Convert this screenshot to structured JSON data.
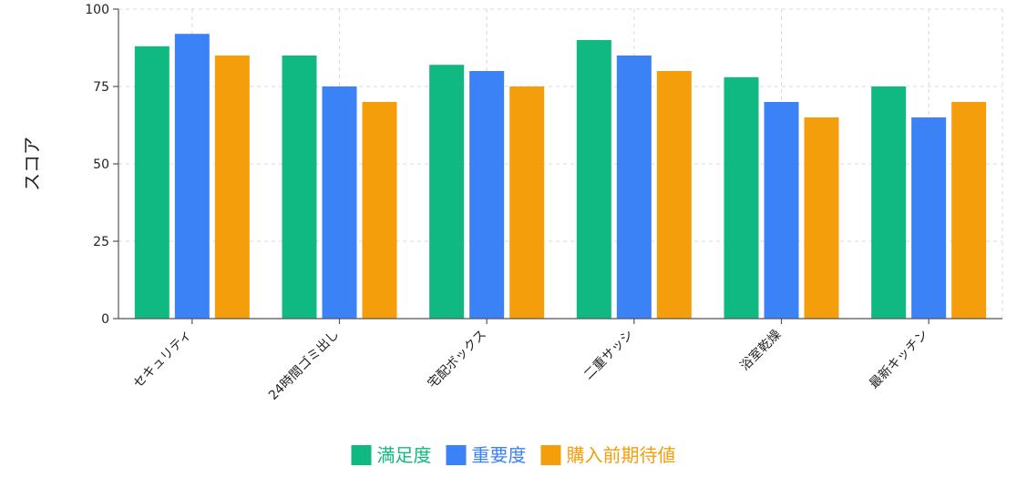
{
  "chart_data": {
    "type": "bar",
    "title": "",
    "xlabel": "",
    "ylabel": "スコア",
    "ylim": [
      0,
      100
    ],
    "yticks": [
      0,
      25,
      50,
      75,
      100
    ],
    "grid": true,
    "legend_position": "bottom",
    "categories": [
      "セキュリティ",
      "24時間ゴミ出し",
      "宅配ボックス",
      "二重サッシ",
      "浴室乾燥",
      "最新キッチン"
    ],
    "series": [
      {
        "name": "満足度",
        "color": "#10b981",
        "values": [
          88,
          85,
          82,
          90,
          78,
          75
        ]
      },
      {
        "name": "重要度",
        "color": "#3b82f6",
        "values": [
          92,
          75,
          80,
          85,
          70,
          65
        ]
      },
      {
        "name": "購入前期待値",
        "color": "#f59e0b",
        "values": [
          85,
          70,
          75,
          80,
          65,
          70
        ]
      }
    ]
  }
}
